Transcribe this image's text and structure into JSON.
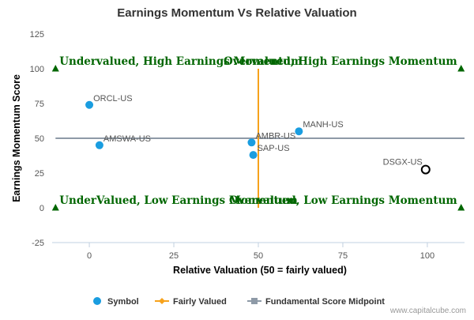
{
  "chart_data": {
    "type": "scatter",
    "title": "Earnings Momentum Vs Relative Valuation",
    "xlabel": "Relative Valuation (50 = fairly valued)",
    "ylabel": "Earnings Momentum Score",
    "xlim": [
      -11,
      111
    ],
    "ylim": [
      -25,
      125
    ],
    "x_ticks": [
      0,
      25,
      50,
      75,
      100
    ],
    "y_ticks": [
      -25,
      0,
      25,
      50,
      75,
      100,
      125
    ],
    "grid": false,
    "legend_position": "bottom",
    "series": [
      {
        "name": "Symbol",
        "color": "#1a9de0",
        "points": [
          {
            "label": "ORCL-US",
            "x": 0,
            "y": 74,
            "marker": "filled-circle"
          },
          {
            "label": "AMSWA-US",
            "x": 3,
            "y": 45,
            "marker": "filled-circle"
          },
          {
            "label": "AMBR-US",
            "x": 48,
            "y": 47,
            "marker": "filled-circle"
          },
          {
            "label": "SAP-US",
            "x": 48.5,
            "y": 38,
            "marker": "filled-circle"
          },
          {
            "label": "MANH-US",
            "x": 62,
            "y": 55,
            "marker": "filled-circle"
          },
          {
            "label": "DSGX-US",
            "x": 99.5,
            "y": 27.5,
            "marker": "open-circle"
          }
        ]
      },
      {
        "name": "Fairly Valued",
        "color": "#f7a21b",
        "x_value": 50,
        "y_range": [
          0,
          100
        ]
      },
      {
        "name": "Fundamental Score Midpoint",
        "color": "#8e9aa7",
        "y_value": 50,
        "x_range": [
          -10,
          111
        ]
      }
    ],
    "quadrant_labels": [
      {
        "text": "Undervalued, High Earnings Momentum",
        "x": -10,
        "y": 100,
        "align": "left"
      },
      {
        "text": "Overvalued, High Earnings Momentum",
        "x": 110,
        "y": 100,
        "align": "right"
      },
      {
        "text": "UnderValued, Low Earnings Momentum",
        "x": -10,
        "y": 0,
        "align": "left"
      },
      {
        "text": "Overvalued, Low Earnings Momentum",
        "x": 110,
        "y": 0,
        "align": "right"
      }
    ],
    "corner_markers": [
      {
        "x": -10,
        "y": 100
      },
      {
        "x": 110,
        "y": 100
      },
      {
        "x": -10,
        "y": 0
      },
      {
        "x": 110,
        "y": 0
      }
    ],
    "quadrant_color": "#006600",
    "credit": "www.capitalcube.com"
  }
}
